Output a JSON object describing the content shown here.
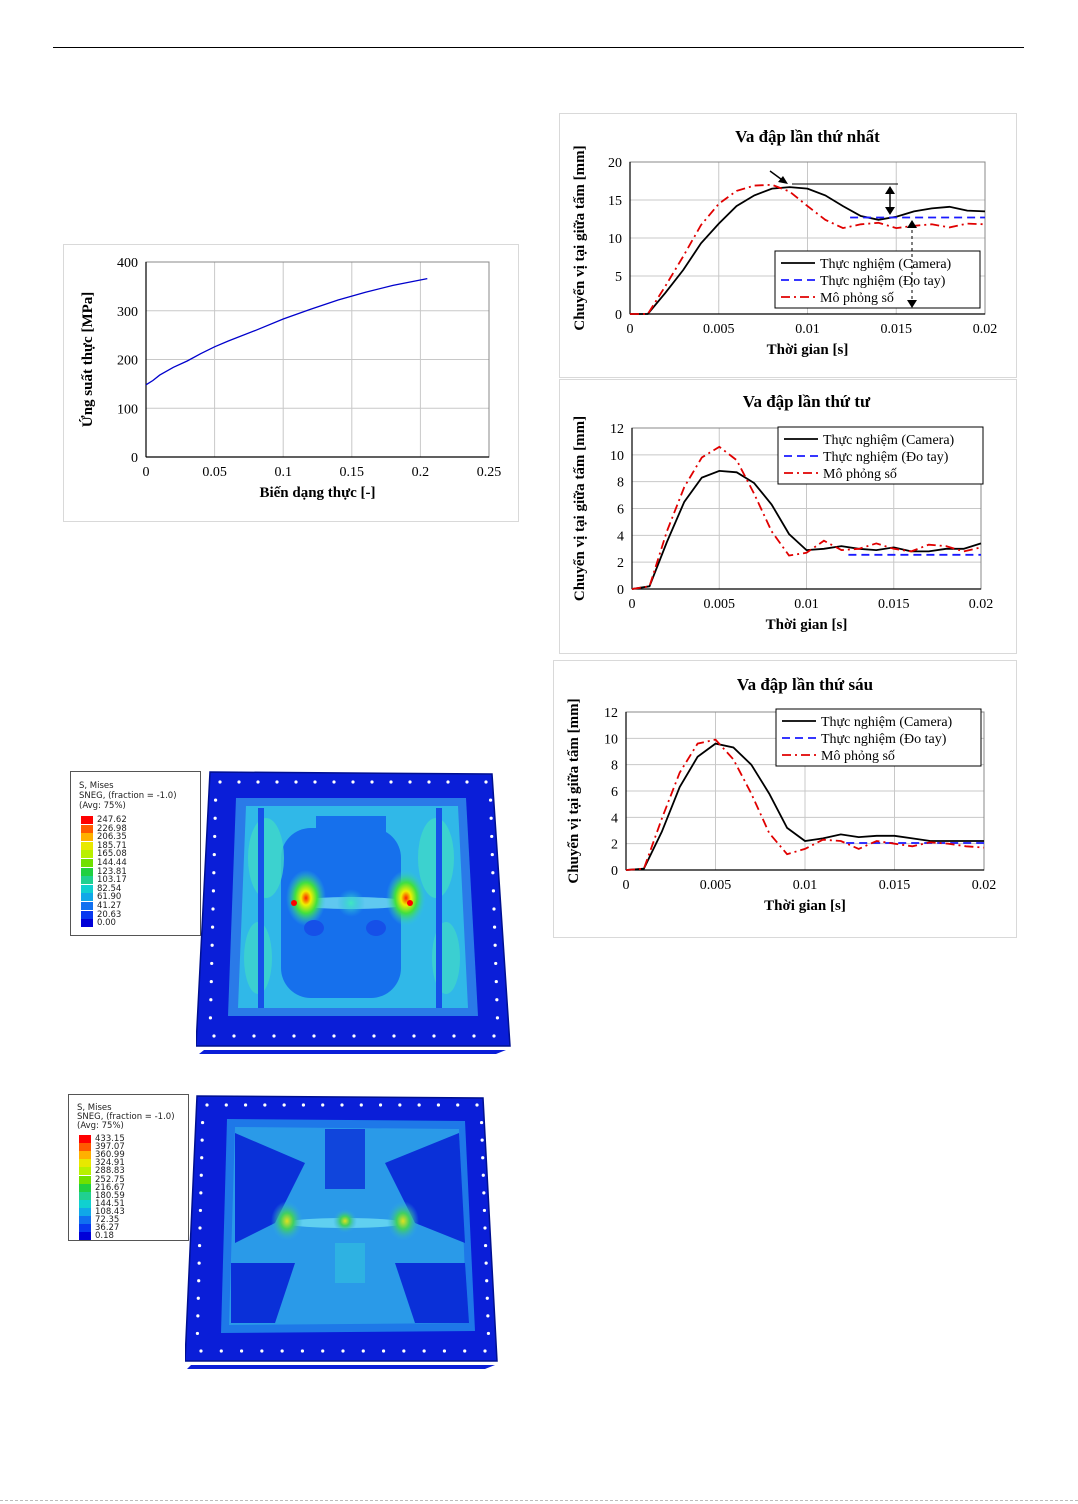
{
  "charts": {
    "stress_strain": {
      "type": "line",
      "title": "",
      "xlabel": "Biến dạng thực [-]",
      "ylabel": "Ứng suất thực [MPa]",
      "xlim": [
        0,
        0.25
      ],
      "ylim": [
        0,
        400
      ],
      "xticks": [
        "0",
        "0.05",
        "0.1",
        "0.15",
        "0.2",
        "0.25"
      ],
      "yticks": [
        "0",
        "100",
        "200",
        "300",
        "400"
      ],
      "grid": true,
      "series": [
        {
          "name": "",
          "color": "#0000cc",
          "x": [
            0,
            0.005,
            0.01,
            0.02,
            0.03,
            0.04,
            0.05,
            0.06,
            0.08,
            0.1,
            0.12,
            0.14,
            0.16,
            0.18,
            0.205
          ],
          "y": [
            148,
            157,
            168,
            184,
            197,
            212,
            226,
            238,
            260,
            283,
            303,
            322,
            338,
            352,
            366
          ]
        }
      ]
    },
    "impact1": {
      "type": "line",
      "title": "Va đập lần thứ nhất",
      "xlabel": "Thời gian [s]",
      "ylabel": "Chuyển vị tại giữa tấm [mm]",
      "xlim": [
        0,
        0.02
      ],
      "ylim": [
        0,
        20
      ],
      "xticks": [
        "0",
        "0.005",
        "0.01",
        "0.015",
        "0.02"
      ],
      "yticks": [
        "0",
        "5",
        "10",
        "15",
        "20"
      ],
      "grid": true,
      "legend": "bottom-right",
      "series": [
        {
          "name": "Thực nghiệm (Camera)",
          "color": "#000000",
          "dash": "solid",
          "x": [
            0,
            0.001,
            0.002,
            0.003,
            0.004,
            0.005,
            0.006,
            0.007,
            0.008,
            0.009,
            0.01,
            0.011,
            0.012,
            0.013,
            0.014,
            0.015,
            0.016,
            0.017,
            0.018,
            0.019,
            0.02
          ],
          "y": [
            0,
            0,
            2.8,
            5.8,
            9.3,
            11.9,
            14.2,
            15.6,
            16.5,
            16.7,
            16.5,
            15.6,
            14.2,
            12.9,
            12.4,
            12.8,
            13.5,
            13.9,
            14.1,
            13.6,
            13.5
          ]
        },
        {
          "name": "Thực nghiệm (Đo tay)",
          "color": "#1a1aff",
          "dash": "dashed",
          "x": [
            0.0124,
            0.02
          ],
          "y": [
            12.7,
            12.7
          ]
        },
        {
          "name": "Mô phỏng số",
          "color": "#e00000",
          "dash": "dashdot",
          "x": [
            0,
            0.001,
            0.002,
            0.003,
            0.004,
            0.005,
            0.006,
            0.007,
            0.008,
            0.009,
            0.01,
            0.011,
            0.012,
            0.013,
            0.014,
            0.015,
            0.016,
            0.017,
            0.018,
            0.019,
            0.02
          ],
          "y": [
            0,
            0,
            3.7,
            7.6,
            11.7,
            14.5,
            16.2,
            16.9,
            17.0,
            16.1,
            14.2,
            12.4,
            11.3,
            11.8,
            12.0,
            11.3,
            11.6,
            11.8,
            11.4,
            11.9,
            11.8
          ]
        }
      ]
    },
    "impact4": {
      "type": "line",
      "title": "Va đập lần thứ tư",
      "xlabel": "Thời gian [s]",
      "ylabel": "Chuyển vị tại giữa tấm [mm]",
      "xlim": [
        0,
        0.02
      ],
      "ylim": [
        0,
        12
      ],
      "xticks": [
        "0",
        "0.005",
        "0.01",
        "0.015",
        "0.02"
      ],
      "yticks": [
        "0",
        "2",
        "4",
        "6",
        "8",
        "10",
        "12"
      ],
      "grid": true,
      "legend": "top-right",
      "series": [
        {
          "name": "Thực nghiệm (Camera)",
          "color": "#000000",
          "dash": "solid",
          "x": [
            0,
            0.001,
            0.002,
            0.003,
            0.004,
            0.005,
            0.006,
            0.007,
            0.008,
            0.009,
            0.01,
            0.011,
            0.012,
            0.013,
            0.014,
            0.015,
            0.016,
            0.017,
            0.018,
            0.019,
            0.02
          ],
          "y": [
            0,
            0.2,
            3.5,
            6.5,
            8.3,
            8.8,
            8.7,
            7.9,
            6.3,
            4.1,
            2.9,
            3.0,
            3.2,
            3.0,
            2.9,
            3.1,
            2.8,
            2.8,
            3.0,
            3.0,
            3.4
          ]
        },
        {
          "name": "Thực nghiệm (Đo tay)",
          "color": "#1a1aff",
          "dash": "dashed",
          "x": [
            0.0124,
            0.02
          ],
          "y": [
            2.55,
            2.55
          ]
        },
        {
          "name": "Mô phỏng số",
          "color": "#e00000",
          "dash": "dashdot",
          "x": [
            0,
            0.001,
            0.002,
            0.003,
            0.004,
            0.005,
            0.006,
            0.007,
            0.008,
            0.009,
            0.01,
            0.011,
            0.012,
            0.013,
            0.014,
            0.015,
            0.016,
            0.017,
            0.018,
            0.019,
            0.02
          ],
          "y": [
            0,
            0.2,
            4.3,
            7.6,
            9.8,
            10.6,
            9.6,
            7.1,
            4.3,
            2.5,
            2.7,
            3.6,
            2.9,
            3.0,
            3.4,
            3.0,
            2.8,
            3.3,
            3.2,
            2.8,
            3.1
          ]
        }
      ]
    },
    "impact6": {
      "type": "line",
      "title": "Va đập lần thứ sáu",
      "xlabel": "Thời gian [s]",
      "ylabel": "Chuyển vị tại giữa tấm [mm]",
      "xlim": [
        0,
        0.02
      ],
      "ylim": [
        0,
        12
      ],
      "xticks": [
        "0",
        "0.005",
        "0.01",
        "0.015",
        "0.02"
      ],
      "yticks": [
        "0",
        "2",
        "4",
        "6",
        "8",
        "10",
        "12"
      ],
      "grid": true,
      "legend": "top-right",
      "series": [
        {
          "name": "Thực nghiệm (Camera)",
          "color": "#000000",
          "dash": "solid",
          "x": [
            0,
            0.001,
            0.002,
            0.003,
            0.004,
            0.005,
            0.006,
            0.007,
            0.008,
            0.009,
            0.01,
            0.011,
            0.012,
            0.013,
            0.014,
            0.015,
            0.016,
            0.017,
            0.018,
            0.019,
            0.02
          ],
          "y": [
            0,
            0.1,
            2.9,
            6.3,
            8.6,
            9.6,
            9.3,
            8.0,
            5.8,
            3.2,
            2.2,
            2.4,
            2.7,
            2.5,
            2.6,
            2.6,
            2.4,
            2.2,
            2.2,
            2.2,
            2.2
          ]
        },
        {
          "name": "Thực nghiệm (Đo tay)",
          "color": "#1a1aff",
          "dash": "dashed",
          "x": [
            0.0123,
            0.02
          ],
          "y": [
            2.05,
            2.05
          ]
        },
        {
          "name": "Mô phỏng số",
          "color": "#e00000",
          "dash": "dashdot",
          "x": [
            0,
            0.001,
            0.002,
            0.003,
            0.004,
            0.005,
            0.006,
            0.007,
            0.008,
            0.009,
            0.01,
            0.011,
            0.012,
            0.013,
            0.014,
            0.015,
            0.016,
            0.017,
            0.018,
            0.019,
            0.02
          ],
          "y": [
            0,
            0.1,
            3.9,
            7.4,
            9.6,
            9.9,
            8.4,
            5.8,
            2.8,
            1.2,
            1.6,
            2.3,
            2.2,
            1.6,
            2.2,
            2.0,
            1.8,
            2.1,
            2.0,
            1.8,
            1.7
          ]
        }
      ]
    }
  },
  "contours": [
    {
      "header": [
        "S, Mises",
        "SNEG, (fraction = -1.0)",
        "(Avg: 75%)"
      ],
      "levels": [
        "247.62",
        "226.98",
        "206.35",
        "185.71",
        "165.08",
        "144.44",
        "123.81",
        "103.17",
        "82.54",
        "61.90",
        "41.27",
        "20.63",
        "0.00"
      ]
    },
    {
      "header": [
        "S, Mises",
        "SNEG, (fraction = -1.0)",
        "(Avg: 75%)"
      ],
      "levels": [
        "433.15",
        "397.07",
        "360.99",
        "324.91",
        "288.83",
        "252.75",
        "216.67",
        "180.59",
        "144.51",
        "108.43",
        "72.35",
        "36.27",
        "0.18"
      ]
    }
  ],
  "contour_colors": [
    "#ff0000",
    "#ff5a00",
    "#ffb000",
    "#e8e800",
    "#b8f000",
    "#70e000",
    "#20d040",
    "#20d090",
    "#10d0d0",
    "#10a8e8",
    "#1070f0",
    "#0838f0",
    "#0000d8"
  ]
}
